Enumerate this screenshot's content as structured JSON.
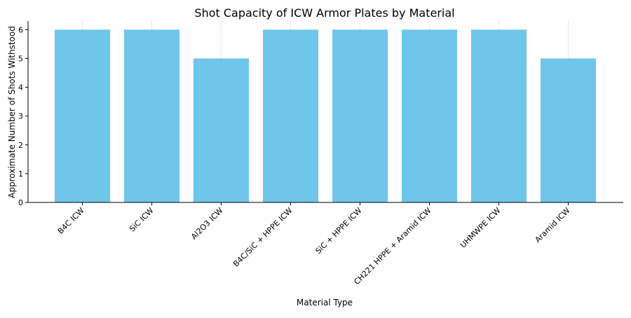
{
  "chart_data": {
    "type": "bar",
    "title": "Shot Capacity of ICW Armor Plates by Material",
    "xlabel": "Material Type",
    "ylabel": "Approximate Number of Shots Withstood",
    "categories": [
      "B4C ICW",
      "SiC ICW",
      "Al2O3 ICW",
      "B4C/SiC + HPPE ICW",
      "SiC + HPPE ICW",
      "CH221 HPPE + Aramid ICW",
      "UHMWPE ICW",
      "Aramid ICW"
    ],
    "values": [
      6,
      6,
      5,
      6,
      6,
      6,
      6,
      5
    ],
    "ylim": [
      0,
      6.3
    ],
    "yticks": [
      0,
      1,
      2,
      3,
      4,
      5,
      6
    ],
    "grid": "x-only-dotted",
    "bar_color": "#6ec6ea"
  }
}
